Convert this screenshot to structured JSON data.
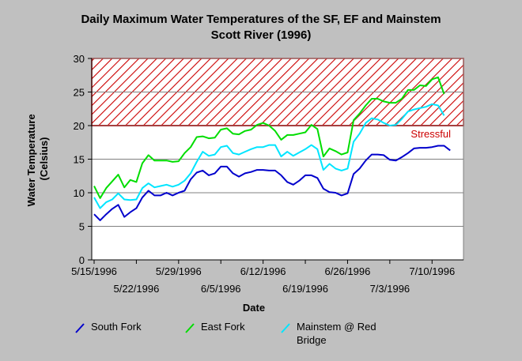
{
  "chart_data": {
    "type": "line",
    "title": "Daily Maximum Water Temperatures of the SF, EF and Mainstem",
    "subtitle": "Scott River (1996)",
    "xlabel": "Date",
    "ylabel": "Water Temperature (Celsius)",
    "ylim": [
      0,
      30
    ],
    "yticks": [
      0,
      5,
      10,
      15,
      20,
      25,
      30
    ],
    "x_start": "5/15/1996",
    "x_ticks": [
      {
        "day": 0,
        "label": "5/15/1996",
        "row": 0
      },
      {
        "day": 7,
        "label": "5/22/1996",
        "row": 1
      },
      {
        "day": 14,
        "label": "5/29/1996",
        "row": 0
      },
      {
        "day": 21,
        "label": "6/5/1996",
        "row": 1
      },
      {
        "day": 28,
        "label": "6/12/1996",
        "row": 0
      },
      {
        "day": 35,
        "label": "6/19/1996",
        "row": 1
      },
      {
        "day": 42,
        "label": "6/26/1996",
        "row": 0
      },
      {
        "day": 49,
        "label": "7/3/1996",
        "row": 1
      },
      {
        "day": 56,
        "label": "7/10/1996",
        "row": 0
      }
    ],
    "grid": true,
    "legend_position": "bottom",
    "stress_zone": {
      "from": 20,
      "to": 30,
      "label": "Stressful",
      "color": "#cc0000"
    },
    "series": [
      {
        "name": "South Fork",
        "color": "#0000cc",
        "values": [
          6.8,
          5.9,
          6.8,
          7.6,
          8.2,
          6.4,
          7.1,
          7.7,
          9.3,
          10.3,
          9.6,
          9.6,
          10.0,
          9.6,
          10.0,
          10.3,
          12.0,
          13.0,
          13.3,
          12.6,
          12.9,
          13.9,
          13.9,
          12.9,
          12.4,
          12.9,
          13.1,
          13.4,
          13.4,
          13.3,
          13.3,
          12.6,
          11.6,
          11.2,
          11.8,
          12.6,
          12.6,
          12.2,
          10.6,
          10.1,
          10.0,
          9.6,
          9.9,
          12.8,
          13.6,
          14.8,
          15.7,
          15.7,
          15.6,
          14.9,
          14.8,
          15.3,
          15.9,
          16.6,
          16.7,
          16.7,
          16.8,
          17.0,
          17.0,
          16.3
        ]
      },
      {
        "name": "East Fork",
        "color": "#00dd00",
        "values": [
          11.0,
          9.2,
          10.7,
          11.7,
          12.7,
          10.8,
          11.9,
          11.6,
          14.4,
          15.6,
          14.8,
          14.8,
          14.8,
          14.6,
          14.7,
          15.9,
          16.8,
          18.3,
          18.4,
          18.1,
          18.2,
          19.4,
          19.6,
          18.8,
          18.7,
          19.2,
          19.4,
          20.1,
          20.4,
          20.0,
          19.2,
          17.9,
          18.6,
          18.6,
          18.8,
          19.0,
          20.1,
          19.5,
          15.4,
          16.6,
          16.2,
          15.7,
          16.0,
          20.8,
          21.8,
          23.0,
          24.0,
          24.0,
          23.6,
          23.4,
          23.4,
          24.0,
          25.3,
          25.3,
          26.0,
          25.9,
          26.9,
          27.2,
          24.7
        ]
      },
      {
        "name": "Mainstem @ Red Bridge",
        "color": "#00e5ff",
        "values": [
          9.3,
          7.7,
          8.6,
          9.0,
          9.9,
          9.0,
          8.9,
          9.0,
          10.7,
          11.4,
          10.8,
          11.0,
          11.2,
          10.9,
          11.2,
          11.8,
          12.9,
          14.6,
          16.1,
          15.5,
          15.7,
          16.8,
          17.0,
          15.9,
          15.7,
          16.1,
          16.5,
          16.8,
          16.8,
          17.1,
          17.1,
          15.4,
          16.1,
          15.5,
          16.0,
          16.5,
          17.1,
          16.5,
          13.4,
          14.3,
          13.6,
          13.3,
          13.6,
          17.6,
          18.8,
          20.4,
          21.1,
          20.9,
          20.4,
          20.0,
          20.1,
          21.0,
          22.1,
          22.4,
          22.6,
          22.8,
          23.2,
          23.0,
          21.5
        ]
      }
    ]
  }
}
